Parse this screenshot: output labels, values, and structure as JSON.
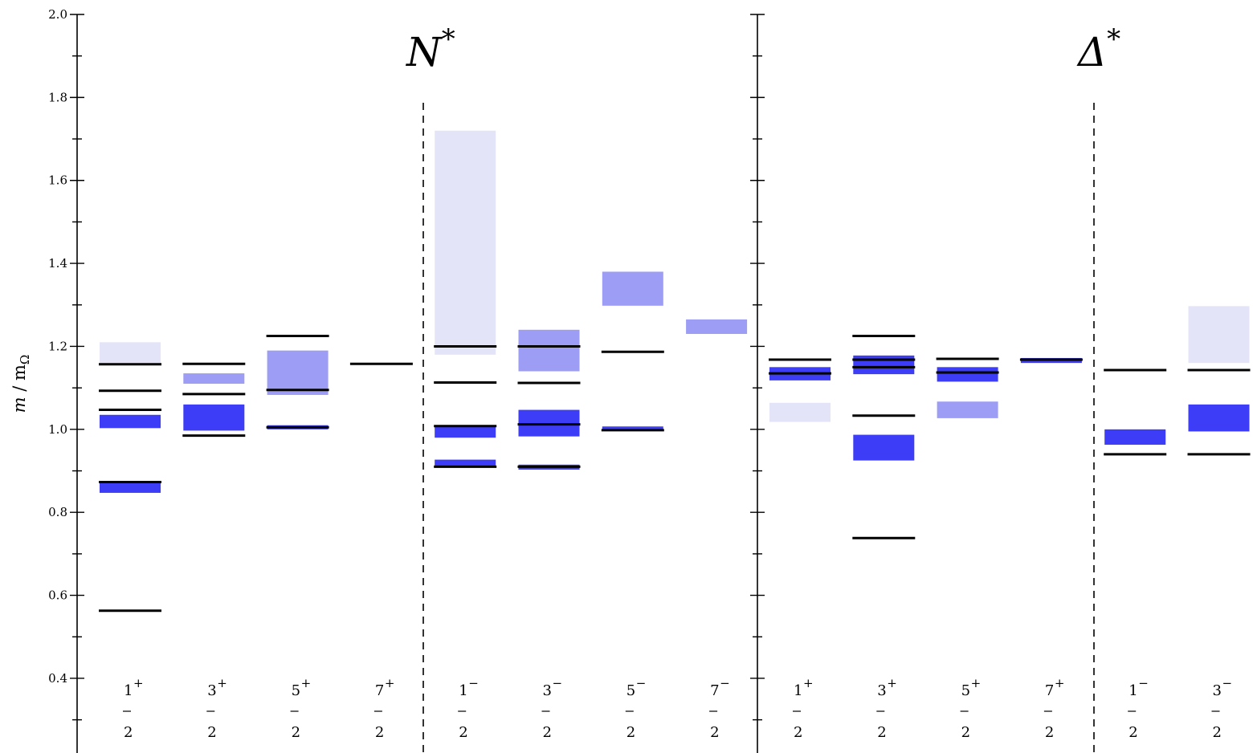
{
  "chart_data": {
    "type": "bar",
    "title": "",
    "xlabel": "",
    "ylabel": "m / m_Ω",
    "ylabel_main": "m",
    "ylabel_sub": "Ω",
    "ylabel_slash": " / m",
    "ylim": [
      0.22,
      2.0
    ],
    "yticks": [
      "0.4",
      "0.6",
      "0.8",
      "1.0",
      "1.2",
      "1.4",
      "1.6",
      "1.8",
      "2.0"
    ],
    "colors": {
      "dark": "#3d3df7",
      "medium": "#9d9df6",
      "light": "#e4e4f9",
      "line": "#000000"
    },
    "panels": [
      {
        "title_letter": "N",
        "title_sup": "*",
        "categories": [
          {
            "num": "1",
            "den": "2",
            "sign": "+"
          },
          {
            "num": "3",
            "den": "2",
            "sign": "+"
          },
          {
            "num": "5",
            "den": "2",
            "sign": "+"
          },
          {
            "num": "7",
            "den": "2",
            "sign": "+"
          },
          {
            "num": "1",
            "den": "2",
            "sign": "−"
          },
          {
            "num": "3",
            "den": "2",
            "sign": "−"
          },
          {
            "num": "5",
            "den": "2",
            "sign": "−"
          },
          {
            "num": "7",
            "den": "2",
            "sign": "−"
          }
        ],
        "bands": [
          {
            "cat": 0,
            "low": 0.847,
            "high": 0.875,
            "shade": "dark"
          },
          {
            "cat": 0,
            "low": 1.003,
            "high": 1.035,
            "shade": "dark"
          },
          {
            "cat": 0,
            "low": 1.158,
            "high": 1.21,
            "shade": "light"
          },
          {
            "cat": 1,
            "low": 0.997,
            "high": 1.06,
            "shade": "dark"
          },
          {
            "cat": 1,
            "low": 1.11,
            "high": 1.135,
            "shade": "medium"
          },
          {
            "cat": 2,
            "low": 1.0,
            "high": 1.01,
            "shade": "dark"
          },
          {
            "cat": 2,
            "low": 1.083,
            "high": 1.19,
            "shade": "medium"
          },
          {
            "cat": 4,
            "low": 0.908,
            "high": 0.927,
            "shade": "dark"
          },
          {
            "cat": 4,
            "low": 0.98,
            "high": 1.01,
            "shade": "dark"
          },
          {
            "cat": 4,
            "low": 1.18,
            "high": 1.72,
            "shade": "light"
          },
          {
            "cat": 5,
            "low": 0.903,
            "high": 0.915,
            "shade": "dark"
          },
          {
            "cat": 5,
            "low": 0.983,
            "high": 1.047,
            "shade": "dark"
          },
          {
            "cat": 5,
            "low": 1.14,
            "high": 1.24,
            "shade": "medium"
          },
          {
            "cat": 6,
            "low": 0.997,
            "high": 1.007,
            "shade": "dark"
          },
          {
            "cat": 6,
            "low": 1.298,
            "high": 1.38,
            "shade": "medium"
          },
          {
            "cat": 7,
            "low": 1.23,
            "high": 1.265,
            "shade": "medium"
          }
        ],
        "levels": [
          {
            "cat": 0,
            "value": 0.563
          },
          {
            "cat": 0,
            "value": 0.873
          },
          {
            "cat": 0,
            "value": 1.047
          },
          {
            "cat": 0,
            "value": 1.093
          },
          {
            "cat": 0,
            "value": 1.157
          },
          {
            "cat": 1,
            "value": 0.985
          },
          {
            "cat": 1,
            "value": 1.085
          },
          {
            "cat": 1,
            "value": 1.158
          },
          {
            "cat": 2,
            "value": 1.005
          },
          {
            "cat": 2,
            "value": 1.095
          },
          {
            "cat": 2,
            "value": 1.225
          },
          {
            "cat": 3,
            "value": 1.158
          },
          {
            "cat": 4,
            "value": 0.91
          },
          {
            "cat": 4,
            "value": 1.008
          },
          {
            "cat": 4,
            "value": 1.113
          },
          {
            "cat": 4,
            "value": 1.2
          },
          {
            "cat": 5,
            "value": 0.91
          },
          {
            "cat": 5,
            "value": 1.012
          },
          {
            "cat": 5,
            "value": 1.112
          },
          {
            "cat": 5,
            "value": 1.2
          },
          {
            "cat": 6,
            "value": 0.998
          },
          {
            "cat": 6,
            "value": 1.187
          }
        ]
      },
      {
        "title_letter": "Δ",
        "title_sup": "*",
        "categories": [
          {
            "num": "1",
            "den": "2",
            "sign": "+"
          },
          {
            "num": "3",
            "den": "2",
            "sign": "+"
          },
          {
            "num": "5",
            "den": "2",
            "sign": "+"
          },
          {
            "num": "7",
            "den": "2",
            "sign": "+"
          },
          {
            "num": "1",
            "den": "2",
            "sign": "−"
          },
          {
            "num": "3",
            "den": "2",
            "sign": "−"
          }
        ],
        "bands": [
          {
            "cat": 0,
            "low": 1.018,
            "high": 1.064,
            "shade": "light"
          },
          {
            "cat": 0,
            "low": 1.118,
            "high": 1.15,
            "shade": "dark"
          },
          {
            "cat": 1,
            "low": 0.925,
            "high": 0.987,
            "shade": "dark"
          },
          {
            "cat": 1,
            "low": 1.133,
            "high": 1.178,
            "shade": "dark"
          },
          {
            "cat": 2,
            "low": 1.027,
            "high": 1.067,
            "shade": "medium"
          },
          {
            "cat": 2,
            "low": 1.115,
            "high": 1.15,
            "shade": "dark"
          },
          {
            "cat": 3,
            "low": 1.16,
            "high": 1.172,
            "shade": "dark"
          },
          {
            "cat": 4,
            "low": 0.963,
            "high": 1.0,
            "shade": "dark"
          },
          {
            "cat": 5,
            "low": 0.995,
            "high": 1.06,
            "shade": "dark"
          },
          {
            "cat": 5,
            "low": 1.16,
            "high": 1.297,
            "shade": "light"
          }
        ],
        "levels": [
          {
            "cat": 0,
            "value": 1.135
          },
          {
            "cat": 0,
            "value": 1.168
          },
          {
            "cat": 1,
            "value": 0.738
          },
          {
            "cat": 1,
            "value": 1.033
          },
          {
            "cat": 1,
            "value": 1.15
          },
          {
            "cat": 1,
            "value": 1.168
          },
          {
            "cat": 1,
            "value": 1.225
          },
          {
            "cat": 2,
            "value": 1.137
          },
          {
            "cat": 2,
            "value": 1.17
          },
          {
            "cat": 3,
            "value": 1.168
          },
          {
            "cat": 4,
            "value": 0.94
          },
          {
            "cat": 4,
            "value": 1.143
          },
          {
            "cat": 5,
            "value": 0.94
          },
          {
            "cat": 5,
            "value": 1.143
          }
        ]
      }
    ]
  }
}
